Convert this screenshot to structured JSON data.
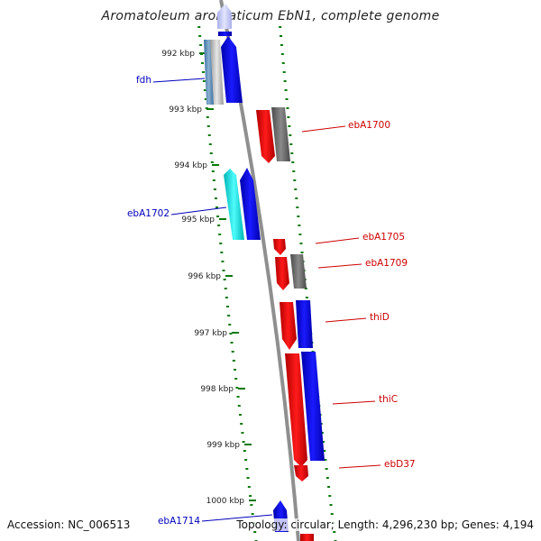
{
  "title": "Aromatoleum aromaticum EbN1, complete genome",
  "footer": {
    "accession": "Accession: NC_006513",
    "summary": "Topology: circular; Length: 4,296,230 bp; Genes: 4,194"
  },
  "colors": {
    "forward_label": "#0000bb",
    "reverse_label": "#cc0000",
    "tick": "#0a7a0a",
    "backbone": "#8f8f8f"
  },
  "ticks": [
    {
      "label": "992 kbp"
    },
    {
      "label": "993 kbp"
    },
    {
      "label": "994 kbp"
    },
    {
      "label": "995 kbp"
    },
    {
      "label": "996 kbp"
    },
    {
      "label": "997 kbp"
    },
    {
      "label": "998 kbp"
    },
    {
      "label": "999 kbp"
    },
    {
      "label": "1000 kbp"
    }
  ],
  "gene_labels": [
    {
      "text": "fdh",
      "strand": "forward"
    },
    {
      "text": "ebA1702",
      "strand": "forward"
    },
    {
      "text": "ebA1714",
      "strand": "forward"
    },
    {
      "text": "ebA1700",
      "strand": "reverse"
    },
    {
      "text": "ebA1705",
      "strand": "reverse"
    },
    {
      "text": "ebA1709",
      "strand": "reverse"
    },
    {
      "text": "thiD",
      "strand": "reverse"
    },
    {
      "text": "thiC",
      "strand": "reverse"
    },
    {
      "text": "ebD37",
      "strand": "reverse"
    }
  ]
}
